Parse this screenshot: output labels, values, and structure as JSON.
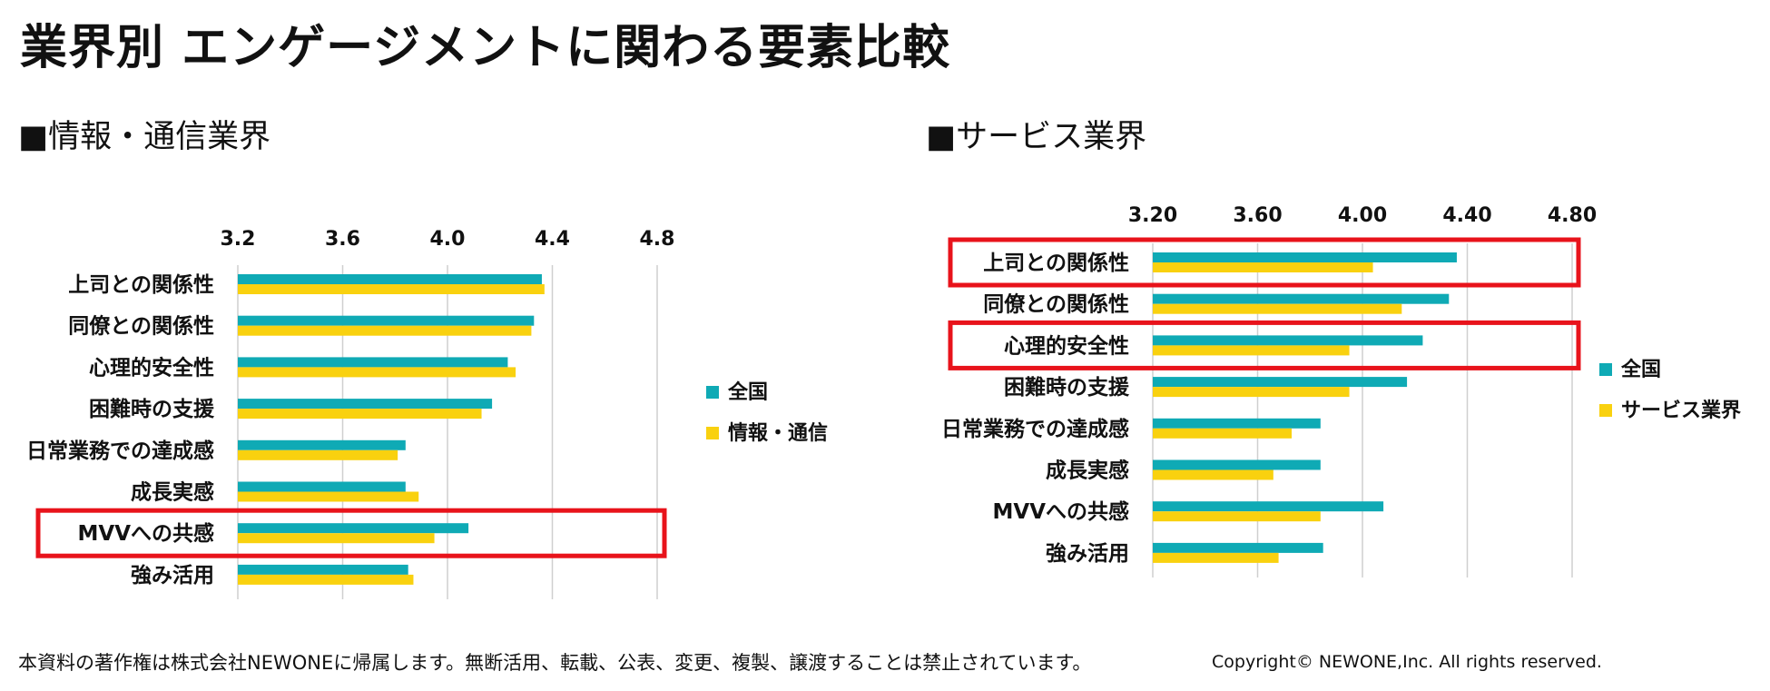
{
  "title": "業界別 エンゲージメントに関わる要素比較",
  "colors": {
    "national": "#0FAAB5",
    "industry": "#F9D10F",
    "highlight": "#E8131B",
    "grid": "#cfcfcf"
  },
  "chart_data": [
    {
      "section_title": "■情報・通信業界",
      "type": "bar",
      "orientation": "horizontal",
      "categories": [
        "上司との関係性",
        "同僚との関係性",
        "心理的安全性",
        "困難時の支援",
        "日常業務での達成感",
        "成長実感",
        "MVVへの共感",
        "強み活用"
      ],
      "series": [
        {
          "name": "全国",
          "values": [
            4.36,
            4.33,
            4.23,
            4.17,
            3.84,
            3.84,
            4.08,
            3.85
          ]
        },
        {
          "name": "情報・通信",
          "values": [
            4.37,
            4.32,
            4.26,
            4.13,
            3.81,
            3.89,
            3.95,
            3.87
          ]
        }
      ],
      "xlim": [
        3.2,
        4.8
      ],
      "ticks": [
        "3.2",
        "3.6",
        "4.0",
        "4.4",
        "4.8"
      ],
      "highlighted": [
        "MVVへの共感"
      ],
      "legend": "right"
    },
    {
      "section_title": "■サービス業界",
      "type": "bar",
      "orientation": "horizontal",
      "categories": [
        "上司との関係性",
        "同僚との関係性",
        "心理的安全性",
        "困難時の支援",
        "日常業務での達成感",
        "成長実感",
        "MVVへの共感",
        "強み活用"
      ],
      "series": [
        {
          "name": "全国",
          "values": [
            4.36,
            4.33,
            4.23,
            4.17,
            3.84,
            3.84,
            4.08,
            3.85
          ]
        },
        {
          "name": "サービス業界",
          "values": [
            4.04,
            4.15,
            3.95,
            3.95,
            3.73,
            3.66,
            3.84,
            3.68
          ]
        }
      ],
      "xlim": [
        3.2,
        4.8
      ],
      "ticks": [
        "3.20",
        "3.60",
        "4.00",
        "4.40",
        "4.80"
      ],
      "highlighted": [
        "上司との関係性",
        "心理的安全性"
      ],
      "legend": "right"
    }
  ],
  "footer": {
    "note": "本資料の著作権は株式会社NEWONEに帰属します。無断活用、転載、公表、変更、複製、譲渡することは禁止されています。",
    "copyright": "Copyright© NEWONE,Inc.  All rights reserved."
  }
}
